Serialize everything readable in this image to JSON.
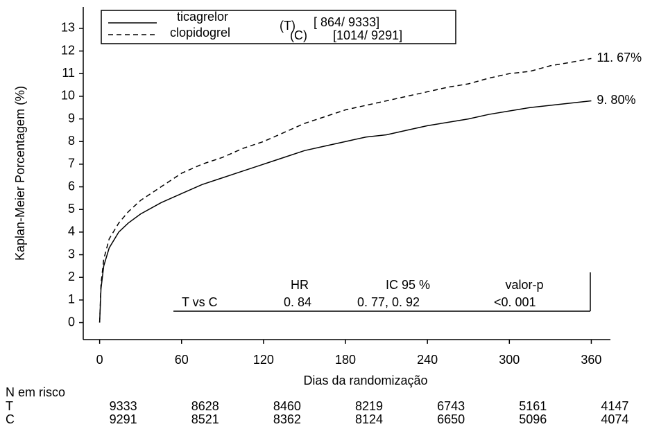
{
  "chart_data": {
    "type": "line",
    "xlabel": "Dias da randomização",
    "ylabel": "Kaplan-Meier Porcentagem (%)",
    "xlim": [
      -12,
      374
    ],
    "ylim": [
      -0.75,
      14
    ],
    "xticks": [
      0,
      60,
      120,
      180,
      240,
      300,
      360
    ],
    "yticks": [
      0,
      1,
      2,
      3,
      4,
      5,
      6,
      7,
      8,
      9,
      10,
      11,
      12,
      13
    ],
    "x": [
      0,
      1,
      3,
      7,
      14,
      21,
      30,
      45,
      60,
      75,
      90,
      105,
      120,
      135,
      150,
      165,
      180,
      195,
      210,
      225,
      240,
      255,
      270,
      285,
      300,
      315,
      330,
      345,
      360
    ],
    "series": [
      {
        "name": "ticagrelor",
        "abbr": "(T)",
        "count": "[ 864/ 9333]",
        "color": "#000000",
        "dash": "none",
        "end_label": "9. 80%",
        "values": [
          0,
          1.5,
          2.5,
          3.3,
          4.0,
          4.4,
          4.8,
          5.3,
          5.7,
          6.1,
          6.4,
          6.7,
          7.0,
          7.3,
          7.6,
          7.8,
          8.0,
          8.2,
          8.3,
          8.5,
          8.7,
          8.85,
          9.0,
          9.2,
          9.35,
          9.5,
          9.6,
          9.7,
          9.8
        ]
      },
      {
        "name": "clopidogrel",
        "abbr": "(C)",
        "count": "[1014/ 9291]",
        "color": "#000000",
        "dash": "7 5",
        "end_label": "11. 67%",
        "values": [
          0,
          1.7,
          2.8,
          3.7,
          4.4,
          4.9,
          5.4,
          6.0,
          6.6,
          7.0,
          7.3,
          7.7,
          8.0,
          8.4,
          8.8,
          9.1,
          9.4,
          9.6,
          9.8,
          10.0,
          10.2,
          10.4,
          10.55,
          10.8,
          11.0,
          11.1,
          11.35,
          11.5,
          11.67
        ]
      }
    ],
    "hr_table": {
      "headers": [
        "HR",
        "IC 95 %",
        "valor-p"
      ],
      "row": [
        "T vs C",
        "0. 84",
        "0. 77, 0. 92",
        "<0. 001"
      ]
    },
    "risk_table": {
      "label": "N em risco",
      "rows": [
        {
          "name": "T",
          "values": [
            9333,
            8628,
            8460,
            8219,
            6743,
            5161,
            4147
          ]
        },
        {
          "name": "C",
          "values": [
            9291,
            8521,
            8362,
            8124,
            6650,
            5096,
            4074
          ]
        }
      ]
    }
  }
}
